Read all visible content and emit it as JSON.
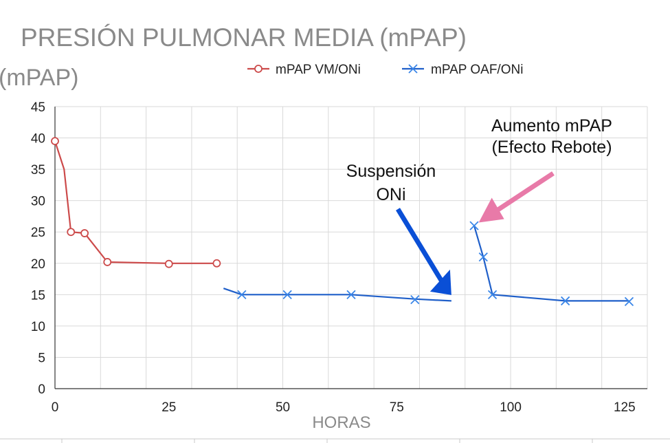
{
  "chart_data": {
    "type": "line",
    "title": "PRESIÓN PULMONAR MEDIA",
    "title_suffix": "(mPAP)",
    "ylabel": "(mPAP)",
    "xlabel": "HORAS",
    "xlim": [
      0,
      130
    ],
    "ylim": [
      0,
      45
    ],
    "x_ticks": [
      0,
      25,
      50,
      75,
      100,
      125
    ],
    "y_ticks": [
      0,
      5,
      10,
      15,
      20,
      25,
      30,
      35,
      40,
      45
    ],
    "grid": true,
    "legend_position": "top-center",
    "series": [
      {
        "name": "mPAP VM/ONi",
        "color": "#cc4a4a",
        "marker": "circle",
        "line": [
          [
            0,
            39.5
          ],
          [
            2,
            35
          ],
          [
            3.5,
            25
          ],
          [
            6.5,
            24.8
          ],
          [
            11.5,
            20.2
          ],
          [
            25,
            20
          ],
          [
            35.5,
            20
          ]
        ],
        "markers": [
          [
            0,
            39.5
          ],
          [
            3.5,
            25
          ],
          [
            6.5,
            24.8
          ],
          [
            11.5,
            20.2
          ],
          [
            25,
            19.9
          ],
          [
            35.5,
            20
          ]
        ]
      },
      {
        "name": "mPAP OAF/ONi",
        "color": "#1f5fc9",
        "marker": "x",
        "segments": [
          [
            [
              37,
              16
            ],
            [
              41,
              15
            ],
            [
              51,
              15
            ],
            [
              60,
              15
            ],
            [
              65,
              15
            ],
            [
              79,
              14.3
            ],
            [
              87,
              14
            ]
          ],
          [
            [
              92,
              26
            ],
            [
              94,
              21
            ],
            [
              96,
              15
            ],
            [
              112,
              14
            ],
            [
              126,
              14
            ]
          ]
        ],
        "markers": [
          [
            41,
            15
          ],
          [
            51,
            15
          ],
          [
            65,
            15
          ],
          [
            79,
            14.2
          ],
          [
            92,
            26
          ],
          [
            94,
            21
          ],
          [
            96,
            15
          ],
          [
            112,
            14
          ],
          [
            126,
            13.9
          ]
        ]
      }
    ],
    "annotations": [
      {
        "name": "suspension",
        "lines": [
          "Suspensión",
          "ONi"
        ],
        "arrow_color": "#0a4fd6",
        "arrow_to": [
          87,
          14.5
        ]
      },
      {
        "name": "rebote",
        "lines": [
          "Aumento mPAP",
          "(Efecto Rebote)"
        ],
        "arrow_color": "#e87aa8",
        "arrow_to": [
          93,
          26.5
        ]
      }
    ]
  }
}
